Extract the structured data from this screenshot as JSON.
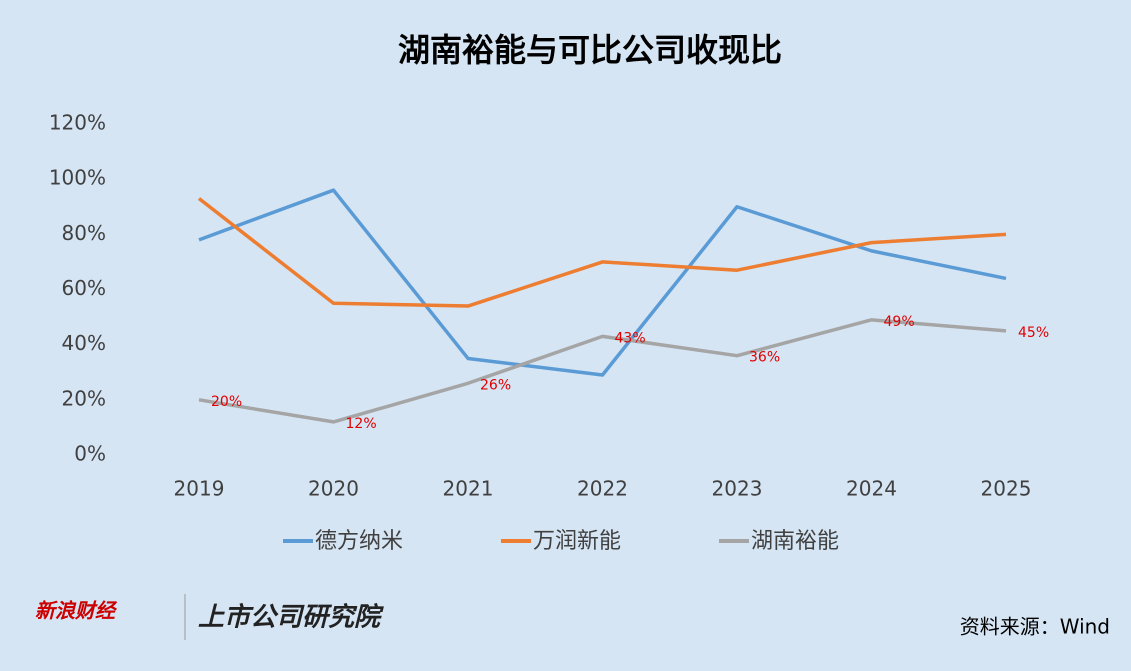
{
  "chart_data": {
    "type": "line",
    "title": "湖南裕能与可比公司收现比",
    "categories": [
      "2019",
      "2020",
      "2021",
      "2022",
      "2023",
      "2024",
      "2025"
    ],
    "series": [
      {
        "name": "德方纳米",
        "color": "#5b9bd5",
        "values": [
          78,
          96,
          35,
          29,
          90,
          74,
          64
        ]
      },
      {
        "name": "万润新能",
        "color": "#ed7d31",
        "values": [
          93,
          55,
          54,
          70,
          67,
          77,
          80
        ]
      },
      {
        "name": "湖南裕能",
        "color": "#a5a5a5",
        "values": [
          20,
          12,
          26,
          43,
          36,
          49,
          45
        ],
        "value_labels": [
          "20%",
          "12%",
          "26%",
          "43%",
          "36%",
          "49%",
          "45%"
        ]
      }
    ],
    "ylim": [
      0,
      120
    ],
    "yticks": [
      {
        "value": 0,
        "label": "0%"
      },
      {
        "value": 20,
        "label": "20%"
      },
      {
        "value": 40,
        "label": "40%"
      },
      {
        "value": 60,
        "label": "60%"
      },
      {
        "value": 80,
        "label": "80%"
      },
      {
        "value": 100,
        "label": "100%"
      },
      {
        "value": 120,
        "label": "120%"
      }
    ],
    "grid": false,
    "legend": "bottom",
    "footer": {
      "brand": "新浪财经",
      "institute": "上市公司研究院",
      "source": "资料来源：Wind"
    }
  }
}
